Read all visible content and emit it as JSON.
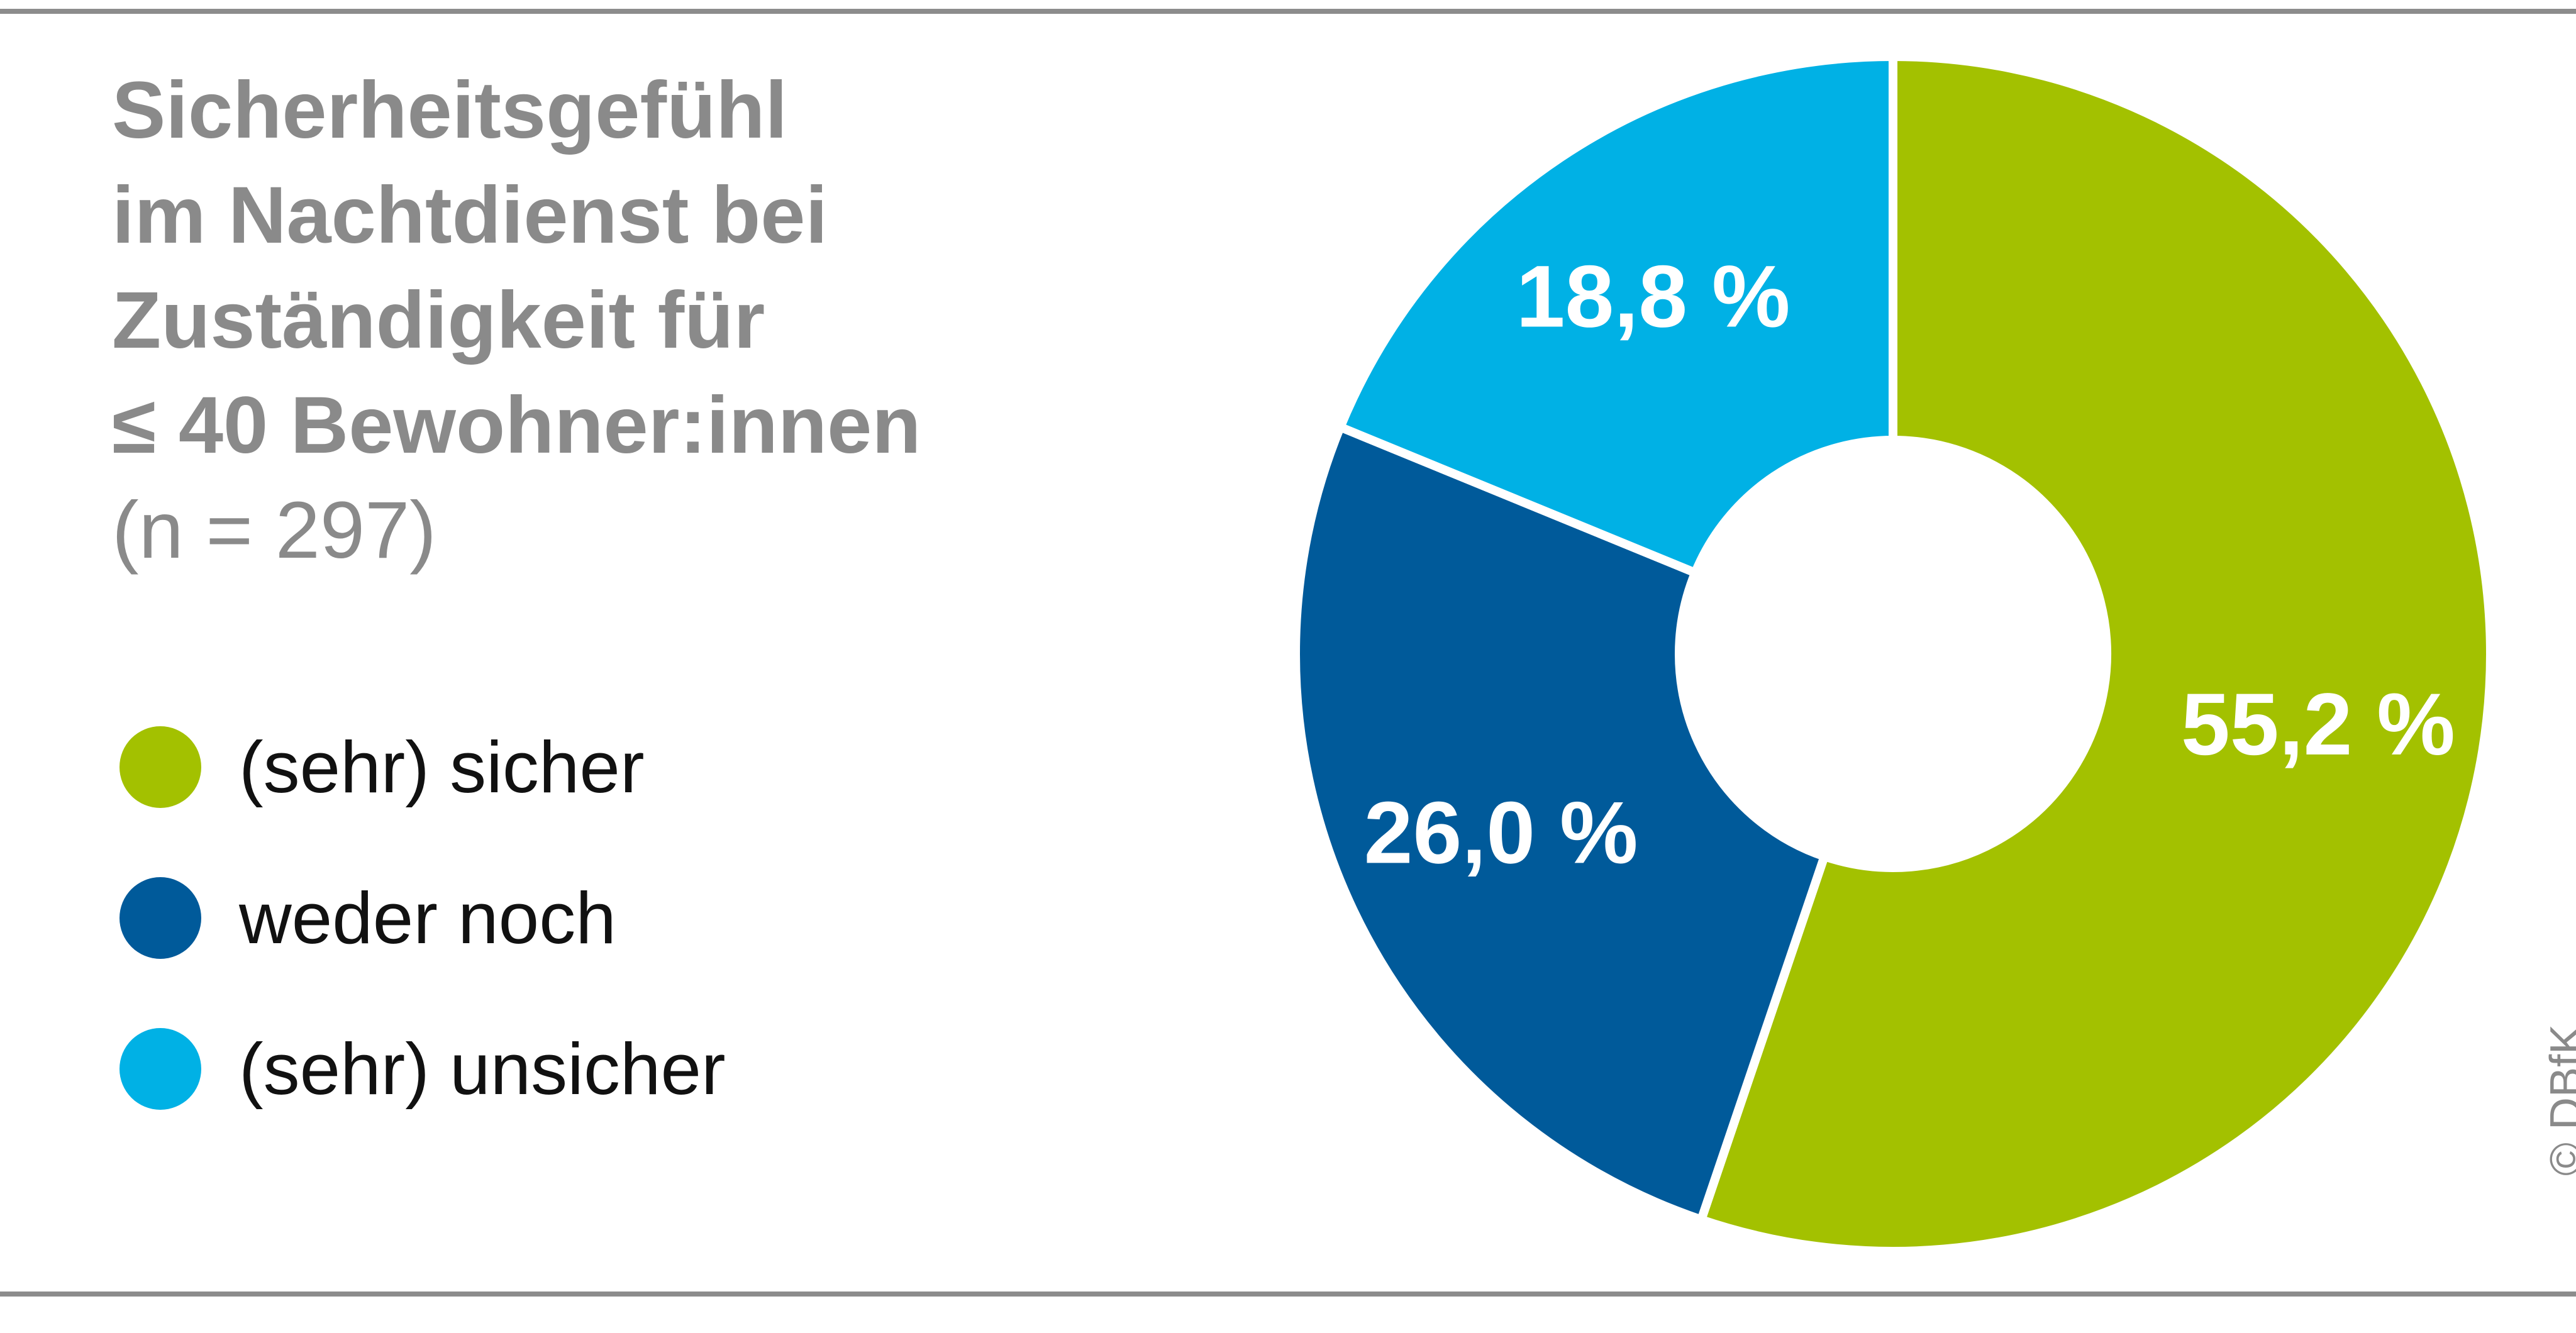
{
  "title_lines": [
    "Sicherheitsgefühl",
    "im Nachtdienst bei",
    "Zuständigkeit für",
    "≤ 40 Bewohner:innen"
  ],
  "subtitle": "(n = 297)",
  "copyright": "© DBfK",
  "colors": {
    "title": "#8a8a8a",
    "rule": "#8c8c8c"
  },
  "chart_data": {
    "type": "pie",
    "donut": true,
    "unit": "%",
    "slices": [
      {
        "label": "(sehr) sicher",
        "value": 55.2,
        "value_label": "55,2 %",
        "color": "#a3c100"
      },
      {
        "label": "weder noch",
        "value": 26.0,
        "value_label": "26,0 %",
        "color": "#005a9a"
      },
      {
        "label": "(sehr) unsicher",
        "value": 18.8,
        "value_label": "18,8 %",
        "color": "#00b1e5"
      }
    ],
    "start_angle": "top (12 o'clock)",
    "direction": "clockwise",
    "legend_position": "left"
  }
}
